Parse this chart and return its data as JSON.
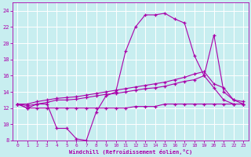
{
  "xlabel": "Windchill (Refroidissement éolien,°C)",
  "bg_color": "#c8eef0",
  "line_color": "#aa00aa",
  "grid_color": "#ffffff",
  "xlim": [
    -0.5,
    23.5
  ],
  "ylim": [
    8,
    25
  ],
  "xticks": [
    0,
    1,
    2,
    3,
    4,
    5,
    6,
    7,
    8,
    9,
    10,
    11,
    12,
    13,
    14,
    15,
    16,
    17,
    18,
    19,
    20,
    21,
    22,
    23
  ],
  "yticks": [
    8,
    10,
    12,
    14,
    16,
    18,
    20,
    22,
    24
  ],
  "hours": [
    0,
    1,
    2,
    3,
    4,
    5,
    6,
    7,
    8,
    9,
    10,
    11,
    12,
    13,
    14,
    15,
    16,
    17,
    18,
    19,
    20,
    21,
    22,
    23
  ],
  "line1": [
    12.5,
    12.0,
    12.5,
    12.5,
    9.5,
    9.5,
    8.2,
    8.0,
    11.5,
    13.5,
    14.0,
    19.0,
    22.0,
    23.5,
    23.5,
    23.7,
    23.0,
    22.5,
    18.5,
    16.0,
    21.0,
    14.0,
    13.0,
    12.5
  ],
  "line2": [
    12.5,
    12.0,
    12.0,
    12.0,
    12.0,
    12.0,
    12.0,
    12.0,
    12.0,
    12.0,
    12.0,
    12.0,
    12.2,
    12.2,
    12.2,
    12.5,
    12.5,
    12.5,
    12.5,
    12.5,
    12.5,
    12.5,
    12.5,
    12.5
  ],
  "line3": [
    12.5,
    12.3,
    12.5,
    12.7,
    13.0,
    13.0,
    13.1,
    13.3,
    13.5,
    13.7,
    13.8,
    14.0,
    14.2,
    14.4,
    14.5,
    14.7,
    15.0,
    15.3,
    15.5,
    16.0,
    14.5,
    13.0,
    12.5,
    12.5
  ],
  "line4": [
    12.5,
    12.5,
    12.8,
    13.0,
    13.2,
    13.3,
    13.4,
    13.6,
    13.8,
    14.0,
    14.2,
    14.4,
    14.6,
    14.8,
    15.0,
    15.2,
    15.5,
    15.8,
    16.2,
    16.5,
    15.0,
    14.5,
    13.0,
    12.8
  ]
}
